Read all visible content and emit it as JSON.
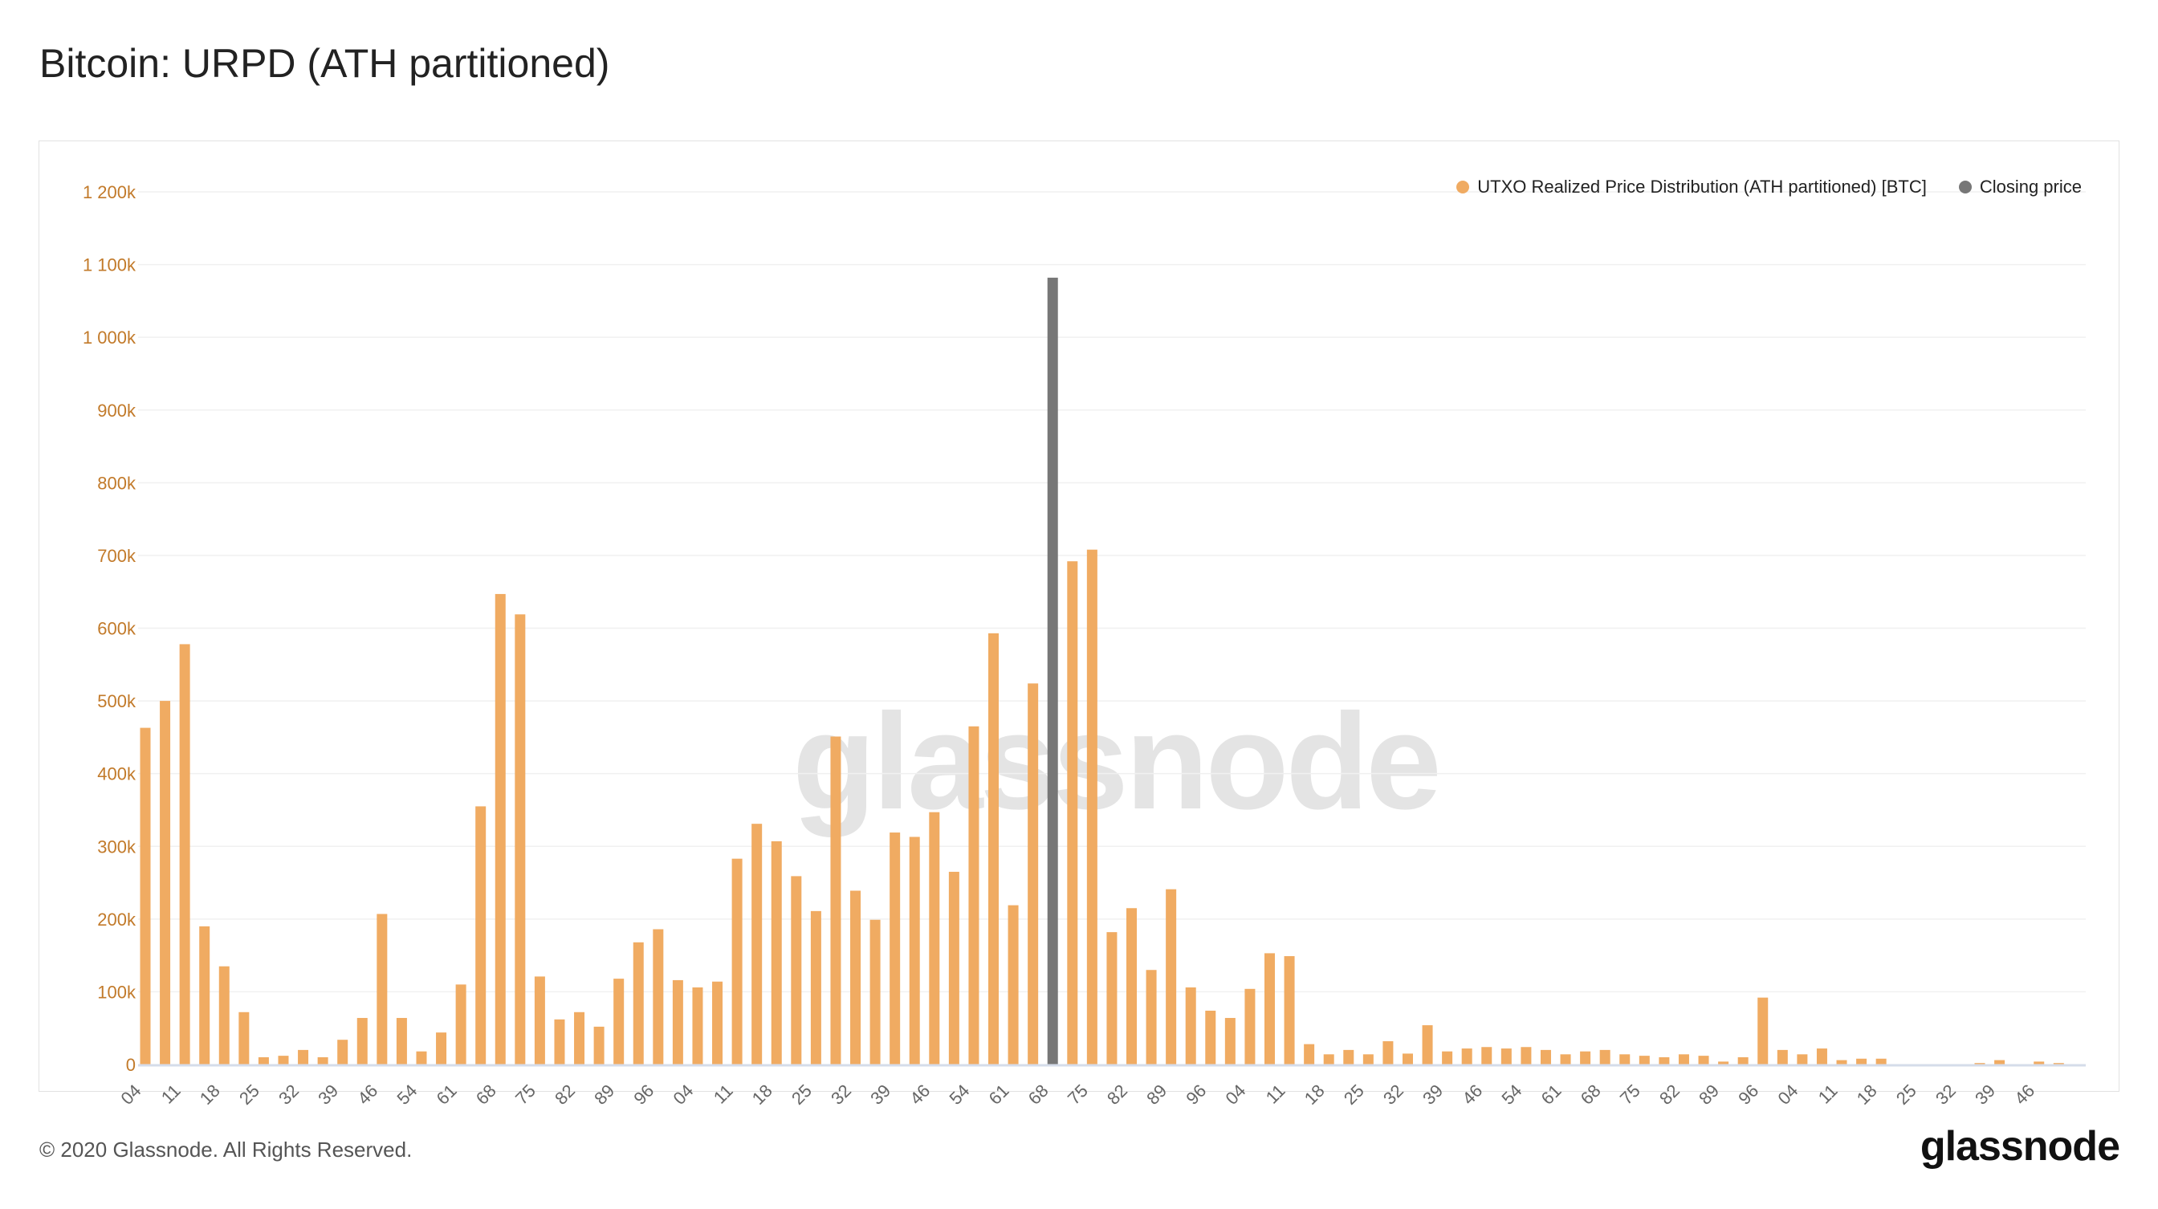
{
  "title": "Bitcoin: URPD (ATH partitioned)",
  "footer": "© 2020 Glassnode. All Rights Reserved.",
  "logo": "glassnode",
  "watermark": "glassnode",
  "colors": {
    "urpd": "#f0ab62",
    "closing": "#777777",
    "ytick": "#c27a2a",
    "xtick": "#666666"
  },
  "legend": [
    {
      "label": "UTXO Realized Price Distribution (ATH partitioned) [BTC]",
      "color": "#f0ab62"
    },
    {
      "label": "Closing price",
      "color": "#777777"
    }
  ],
  "chart_data": {
    "type": "bar",
    "title": "Bitcoin: URPD (ATH partitioned)",
    "ylim": [
      0,
      1200000
    ],
    "yticks": [
      "0",
      "100k",
      "200k",
      "300k",
      "400k",
      "500k",
      "600k",
      "700k",
      "800k",
      "900k",
      "1 000k",
      "1 100k",
      "1 200k"
    ],
    "grid": true,
    "legend_position": "top-right",
    "xtick_labels": [
      "04",
      "11",
      "18",
      "25",
      "32",
      "39",
      "46",
      "54",
      "61",
      "68",
      "75",
      "82",
      "89",
      "96",
      "04",
      "11",
      "18",
      "25",
      "32",
      "39",
      "46",
      "54",
      "61",
      "68",
      "75",
      "82",
      "89",
      "96",
      "04",
      "11",
      "18",
      "25",
      "32",
      "39",
      "46",
      "54",
      "61",
      "68",
      "75",
      "82",
      "89",
      "96",
      "04",
      "11",
      "18",
      "25",
      "32",
      "39",
      "46"
    ],
    "closing_price_index": 46,
    "values": [
      463000,
      500000,
      578000,
      190000,
      135000,
      72000,
      10000,
      12000,
      20000,
      10000,
      34000,
      64000,
      207000,
      64000,
      18000,
      44000,
      110000,
      355000,
      647000,
      619000,
      121000,
      62000,
      72000,
      52000,
      118000,
      168000,
      186000,
      116000,
      106000,
      114000,
      283000,
      331000,
      307000,
      259000,
      211000,
      451000,
      239000,
      199000,
      319000,
      313000,
      347000,
      265000,
      465000,
      593000,
      219000,
      524000,
      1082000,
      692000,
      708000,
      182000,
      215000,
      130000,
      241000,
      106000,
      74000,
      64000,
      104000,
      153000,
      149000,
      28000,
      14000,
      20000,
      14000,
      32000,
      15000,
      54000,
      18000,
      22000,
      24000,
      22000,
      24000,
      20000,
      14000,
      18000,
      20000,
      14000,
      12000,
      10000,
      14000,
      12000,
      4000,
      10000,
      92000,
      20000,
      14000,
      22000,
      6000,
      8000,
      8000,
      0,
      0,
      0,
      0,
      2000,
      6000,
      0,
      4000,
      2000
    ]
  }
}
